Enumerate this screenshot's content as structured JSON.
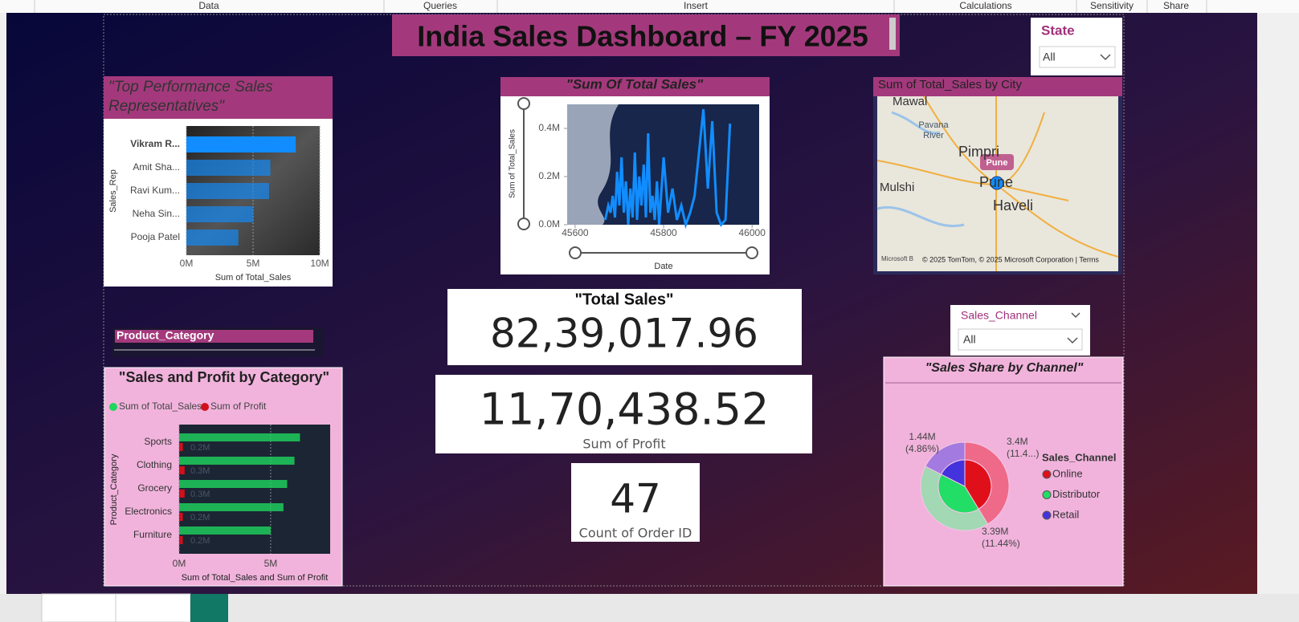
{
  "ribbon": [
    "Data",
    "Queries",
    "Insert",
    "Calculations",
    "Sensitivity",
    "Share"
  ],
  "title": "India Sales Dashboard – FY 2025",
  "state_slicer": {
    "label": "State",
    "value": "All"
  },
  "channel_slicer": {
    "label": "Sales_Channel",
    "value": "All"
  },
  "category_slicer": {
    "label": "Product_Category"
  },
  "cards": [
    {
      "title": "\"Total Sales\"",
      "value": "82,39,017.96"
    },
    {
      "value": "11,70,438.52",
      "label": "Sum of Profit"
    },
    {
      "value": "47",
      "label": "Count of Order ID"
    }
  ],
  "chart_data": [
    {
      "type": "bar",
      "orientation": "horizontal",
      "title": "\"Top Performance Sales Representatives\"",
      "categories": [
        "Vikram R...",
        "Amit Sha...",
        "Ravi Kum...",
        "Neha Sin...",
        "Pooja Patel"
      ],
      "values": [
        8.2,
        6.3,
        6.2,
        5.0,
        3.9
      ],
      "color": "#118dff",
      "xlim": [
        0,
        10
      ],
      "xticks": [
        {
          "value": 0,
          "label": "0M"
        },
        {
          "value": 5,
          "label": "5M"
        },
        {
          "value": 10,
          "label": "10M"
        }
      ],
      "x_label": "Sum of Total_Sales",
      "y_label": "Sales_Rep",
      "grid": true
    },
    {
      "type": "line",
      "title": "\"Sum Of Total Sales\"",
      "x": [
        45668,
        45675,
        45680,
        45685,
        45690,
        45695,
        45700,
        45705,
        45710,
        45715,
        45720,
        45725,
        45730,
        45735,
        45740,
        45745,
        45750,
        45755,
        45760,
        45765,
        45770,
        45775,
        45780,
        45785,
        45790,
        45800,
        45810,
        45820,
        45830,
        45840,
        45850,
        45860,
        45870,
        45880,
        45890,
        45900,
        45910,
        45920,
        45930,
        45940,
        45950
      ],
      "values": [
        0.02,
        0.08,
        0.05,
        0.12,
        0.03,
        0.22,
        0.08,
        0.28,
        0.05,
        0.18,
        0.0,
        0.15,
        0.03,
        0.3,
        0.02,
        0.2,
        0.08,
        0.25,
        0.03,
        0.38,
        0.05,
        0.12,
        0.02,
        0.18,
        0.0,
        0.28,
        0.05,
        0.15,
        0.02,
        0.08,
        0.0,
        0.05,
        0.12,
        0.3,
        0.48,
        0.15,
        0.43,
        0.05,
        0.0,
        0.02,
        0.42
      ],
      "color": "#118dff",
      "xlim": [
        45582,
        46016
      ],
      "xticks": [
        45600,
        45800,
        46000
      ],
      "ylim": [
        0,
        0.5
      ],
      "yticks": [
        {
          "value": 0,
          "label": "0.0M"
        },
        {
          "value": 0.2,
          "label": "0.2M"
        },
        {
          "value": 0.4,
          "label": "0.4M"
        }
      ],
      "x_label": "Date",
      "y_label": "Sum of Total_Sales"
    },
    {
      "type": "map",
      "title": "Sum of Total_Sales by City",
      "places": [
        "Mawal",
        "Pimpri",
        "Pune",
        "Mulshi",
        "Haveli"
      ],
      "river": "Pavana River",
      "bubble_label": "Pune",
      "attribution": "Microsoft B",
      "copyright": "© 2025 TomTom, © 2025 Microsoft Corporation | Terms"
    },
    {
      "type": "hbar-grouped",
      "title": "\"Sales and Profit by Category\"",
      "categories": [
        "Sports",
        "Clothing",
        "Grocery",
        "Electronics",
        "Furniture"
      ],
      "series": [
        {
          "name": "Sum of Total_Sales",
          "color": "#1fd65f",
          "values": [
            6.6,
            6.3,
            5.9,
            5.7,
            5.0
          ]
        },
        {
          "name": "Sum of Profit",
          "color": "#d0101a",
          "values": [
            0.2,
            0.3,
            0.3,
            0.2,
            0.2
          ],
          "value_labels": [
            "0.2M",
            "0.3M",
            "0.3M",
            "0.2M",
            "0.2M"
          ]
        }
      ],
      "xlim": [
        0,
        8.25
      ],
      "xticks": [
        {
          "value": 0,
          "label": "0M"
        },
        {
          "value": 5,
          "label": "5M"
        }
      ],
      "x_label": "Sum of Total_Sales and Sum of Profit",
      "y_label": "Product_Category",
      "grid": true
    },
    {
      "type": "pie",
      "title": "\"Sales Share by Channel\"",
      "legend_title": "Sales_Channel",
      "categories": [
        "Online",
        "Distributor",
        "Retail"
      ],
      "values": [
        3.4,
        3.39,
        1.44
      ],
      "value_labels": [
        "3.4M",
        "3.39M",
        "1.44M"
      ],
      "percent_labels": [
        "(11.4...)",
        "(11.44%)",
        "(4.86%)"
      ],
      "colors": [
        "#e0101a",
        "#22dd66",
        "#4433dd"
      ],
      "outer_colors": [
        "#ee6a88",
        "#a2d8b4",
        "#a27ae0"
      ]
    }
  ]
}
